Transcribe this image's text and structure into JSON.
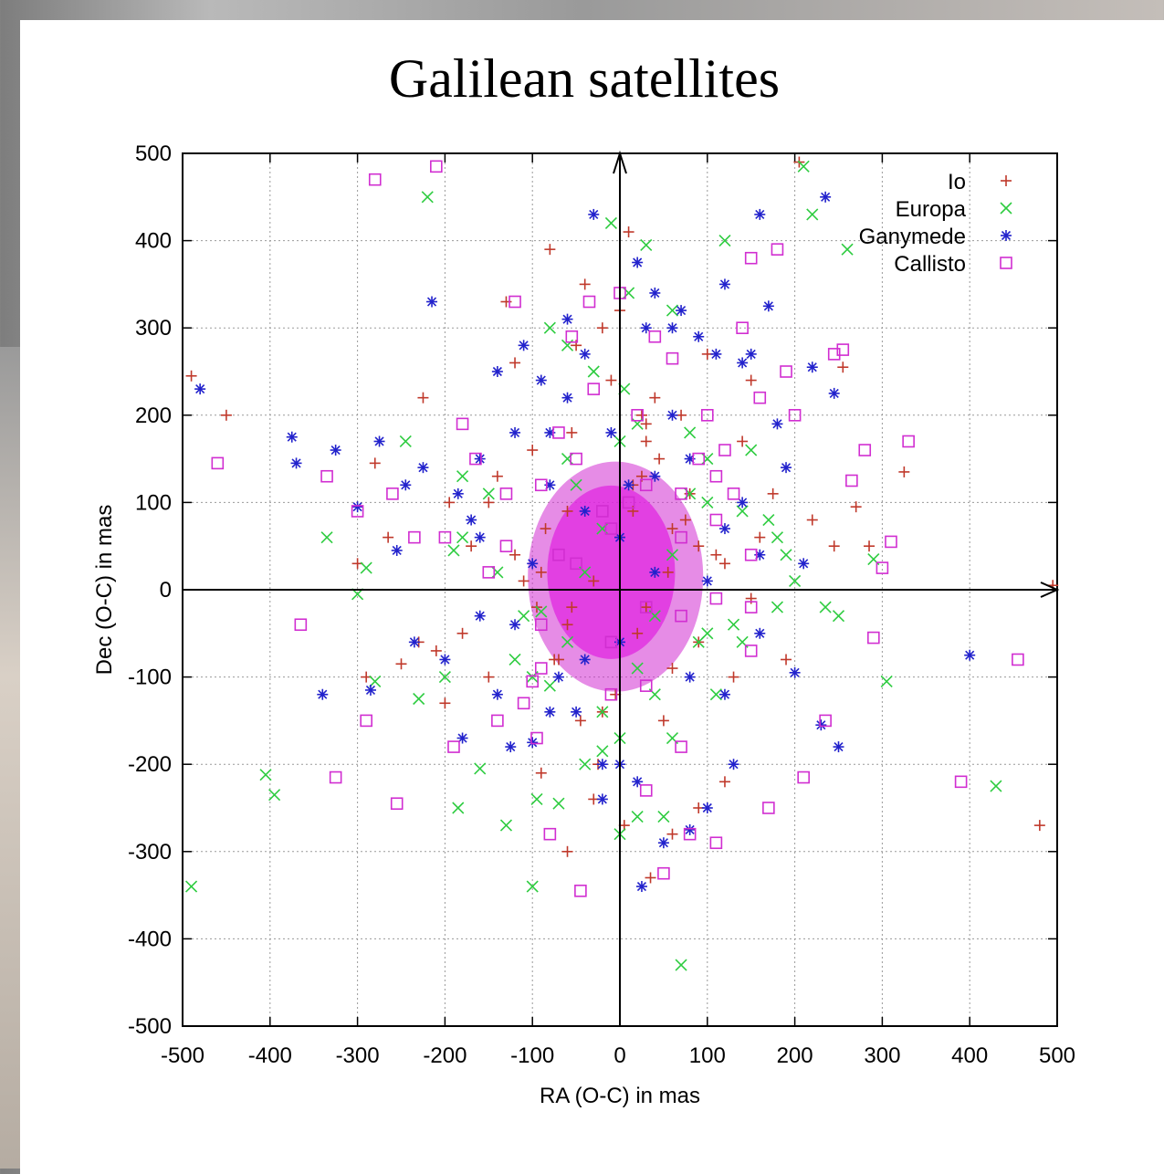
{
  "chart_data": {
    "type": "scatter",
    "title": "Galilean satellites",
    "xlabel": "RA (O-C) in mas",
    "ylabel": "Dec (O-C) in mas",
    "xlim": [
      -500,
      500
    ],
    "ylim": [
      -500,
      500
    ],
    "xticks": [
      "-500",
      "-400",
      "-300",
      "-200",
      "-100",
      "0",
      "100",
      "200",
      "300",
      "400",
      "500"
    ],
    "yticks": [
      "500",
      "400",
      "300",
      "200",
      "100",
      "0",
      "-100",
      "-200",
      "-300",
      "-400",
      "-500"
    ],
    "grid": true,
    "legend_position": "top-right",
    "series": [
      {
        "name": "Io",
        "marker": "plus",
        "color": "#c0392b",
        "x": [
          -490,
          -450,
          -300,
          -290,
          -280,
          -265,
          -250,
          -230,
          -225,
          -210,
          -200,
          -195,
          -180,
          -170,
          -150,
          -140,
          -130,
          -120,
          -110,
          -100,
          -95,
          -90,
          -85,
          -80,
          -70,
          -60,
          -55,
          -50,
          -40,
          -30,
          -20,
          -10,
          0,
          5,
          10,
          15,
          20,
          25,
          30,
          35,
          40,
          50,
          60,
          70,
          80,
          90,
          100,
          110,
          120,
          130,
          140,
          150,
          160,
          175,
          190,
          205,
          220,
          245,
          255,
          270,
          285,
          325,
          480,
          495,
          -60,
          -20,
          30,
          60,
          90,
          -150,
          -120,
          -90,
          -60,
          -30,
          0,
          30,
          60,
          90,
          120,
          150,
          15,
          -5,
          45,
          -45,
          75,
          -75,
          25,
          -25,
          55,
          -55
        ],
        "y": [
          245,
          200,
          30,
          -100,
          145,
          60,
          -85,
          -60,
          220,
          -70,
          -130,
          100,
          -50,
          50,
          -100,
          130,
          330,
          260,
          10,
          160,
          -20,
          -210,
          70,
          390,
          -80,
          -300,
          180,
          280,
          350,
          -240,
          300,
          240,
          320,
          -270,
          410,
          90,
          -50,
          130,
          190,
          -330,
          220,
          -150,
          -280,
          200,
          110,
          -250,
          270,
          40,
          -220,
          -100,
          170,
          240,
          60,
          110,
          -80,
          490,
          80,
          50,
          255,
          95,
          50,
          135,
          -270,
          5,
          90,
          -140,
          170,
          -90,
          50,
          100,
          40,
          20,
          -40,
          10,
          60,
          -20,
          70,
          -60,
          30,
          -10,
          120,
          -120,
          150,
          -150,
          80,
          -80,
          200,
          -200,
          20,
          -20
        ]
      },
      {
        "name": "Europa",
        "marker": "x",
        "color": "#2ecc40",
        "x": [
          -490,
          -405,
          -395,
          -335,
          -300,
          -290,
          -280,
          -245,
          -230,
          -220,
          -200,
          -190,
          -185,
          -180,
          -160,
          -130,
          -120,
          -100,
          -95,
          -90,
          -80,
          -70,
          -60,
          -50,
          -40,
          -30,
          -20,
          -10,
          0,
          5,
          10,
          20,
          30,
          40,
          50,
          60,
          70,
          80,
          90,
          100,
          110,
          120,
          130,
          150,
          170,
          190,
          200,
          210,
          220,
          235,
          250,
          260,
          290,
          305,
          430,
          -150,
          -110,
          -60,
          -20,
          20,
          60,
          100,
          140,
          180,
          -180,
          -140,
          -100,
          -60,
          -20,
          20,
          60,
          100,
          140,
          180,
          -40,
          40,
          -80,
          80,
          0,
          0
        ],
        "y": [
          -340,
          -212,
          -235,
          60,
          -5,
          25,
          -105,
          170,
          -125,
          450,
          -100,
          45,
          -250,
          60,
          -205,
          -270,
          -80,
          -340,
          -240,
          -25,
          300,
          -245,
          280,
          120,
          -200,
          250,
          -185,
          420,
          -280,
          230,
          340,
          -260,
          395,
          -120,
          -260,
          320,
          -430,
          180,
          -60,
          150,
          -120,
          400,
          -40,
          160,
          80,
          40,
          10,
          485,
          430,
          -20,
          -30,
          390,
          35,
          -105,
          -225,
          110,
          -30,
          -60,
          70,
          -90,
          40,
          -50,
          90,
          -20,
          130,
          20,
          -100,
          150,
          -140,
          190,
          -170,
          100,
          -60,
          60,
          20,
          -30,
          -110,
          110,
          170,
          -170
        ]
      },
      {
        "name": "Ganymede",
        "marker": "star",
        "color": "#2222cc",
        "x": [
          -480,
          -375,
          -370,
          -340,
          -325,
          -300,
          -285,
          -275,
          -255,
          -245,
          -235,
          -225,
          -215,
          -200,
          -185,
          -180,
          -170,
          -160,
          -140,
          -125,
          -110,
          -100,
          -90,
          -80,
          -70,
          -60,
          -50,
          -40,
          -30,
          -20,
          -10,
          0,
          10,
          20,
          25,
          30,
          40,
          50,
          60,
          70,
          80,
          90,
          100,
          110,
          120,
          130,
          140,
          150,
          160,
          170,
          180,
          190,
          200,
          210,
          220,
          230,
          235,
          245,
          250,
          400,
          -160,
          -120,
          -80,
          -40,
          0,
          40,
          80,
          120,
          160,
          -160,
          -120,
          -80,
          -40,
          0,
          40,
          80,
          120,
          160,
          -60,
          60,
          -20,
          20,
          -100,
          100,
          -140,
          140
        ],
        "y": [
          230,
          175,
          145,
          -120,
          160,
          95,
          -115,
          170,
          45,
          120,
          -60,
          140,
          330,
          -80,
          110,
          -170,
          80,
          150,
          250,
          -180,
          280,
          -175,
          240,
          180,
          -100,
          310,
          -140,
          270,
          430,
          -240,
          180,
          -200,
          120,
          375,
          -340,
          300,
          340,
          -290,
          300,
          320,
          -275,
          290,
          -250,
          270,
          350,
          -200,
          260,
          270,
          430,
          325,
          190,
          140,
          -95,
          30,
          255,
          -155,
          450,
          225,
          -180,
          -75,
          60,
          -40,
          120,
          -80,
          60,
          20,
          150,
          -120,
          40,
          -30,
          180,
          -140,
          90,
          -60,
          130,
          -100,
          70,
          -50,
          220,
          200,
          -200,
          -220,
          30,
          10,
          -120,
          100
        ]
      },
      {
        "name": "Callisto",
        "marker": "square",
        "color": "#d12ed1",
        "x": [
          -460,
          -365,
          -335,
          -325,
          -300,
          -290,
          -280,
          -260,
          -255,
          -235,
          -210,
          -200,
          -190,
          -180,
          -165,
          -140,
          -120,
          -100,
          -95,
          -90,
          -80,
          -70,
          -55,
          -45,
          -35,
          -20,
          -10,
          0,
          10,
          20,
          30,
          40,
          50,
          60,
          70,
          80,
          90,
          100,
          110,
          120,
          130,
          140,
          150,
          160,
          170,
          180,
          190,
          200,
          210,
          235,
          245,
          255,
          265,
          280,
          290,
          300,
          310,
          330,
          390,
          455,
          -130,
          -90,
          -50,
          -10,
          30,
          70,
          110,
          150,
          -130,
          -90,
          -50,
          -10,
          30,
          70,
          110,
          150,
          -70,
          70,
          -110,
          110,
          -30,
          30,
          -150,
          150
        ],
        "y": [
          145,
          -40,
          130,
          -215,
          90,
          -150,
          470,
          110,
          -245,
          60,
          485,
          60,
          -180,
          190,
          150,
          -150,
          330,
          -105,
          -170,
          120,
          -280,
          40,
          290,
          -345,
          330,
          90,
          -120,
          340,
          100,
          200,
          -110,
          290,
          -325,
          265,
          110,
          -280,
          150,
          200,
          -290,
          160,
          110,
          300,
          380,
          220,
          -250,
          390,
          250,
          200,
          -215,
          -150,
          270,
          275,
          125,
          160,
          -55,
          25,
          55,
          170,
          -220,
          -80,
          50,
          -90,
          150,
          -60,
          120,
          -30,
          80,
          -70,
          110,
          -40,
          30,
          70,
          -20,
          60,
          -10,
          40,
          180,
          -180,
          -130,
          130,
          230,
          -230,
          20,
          -20
        ]
      }
    ]
  }
}
